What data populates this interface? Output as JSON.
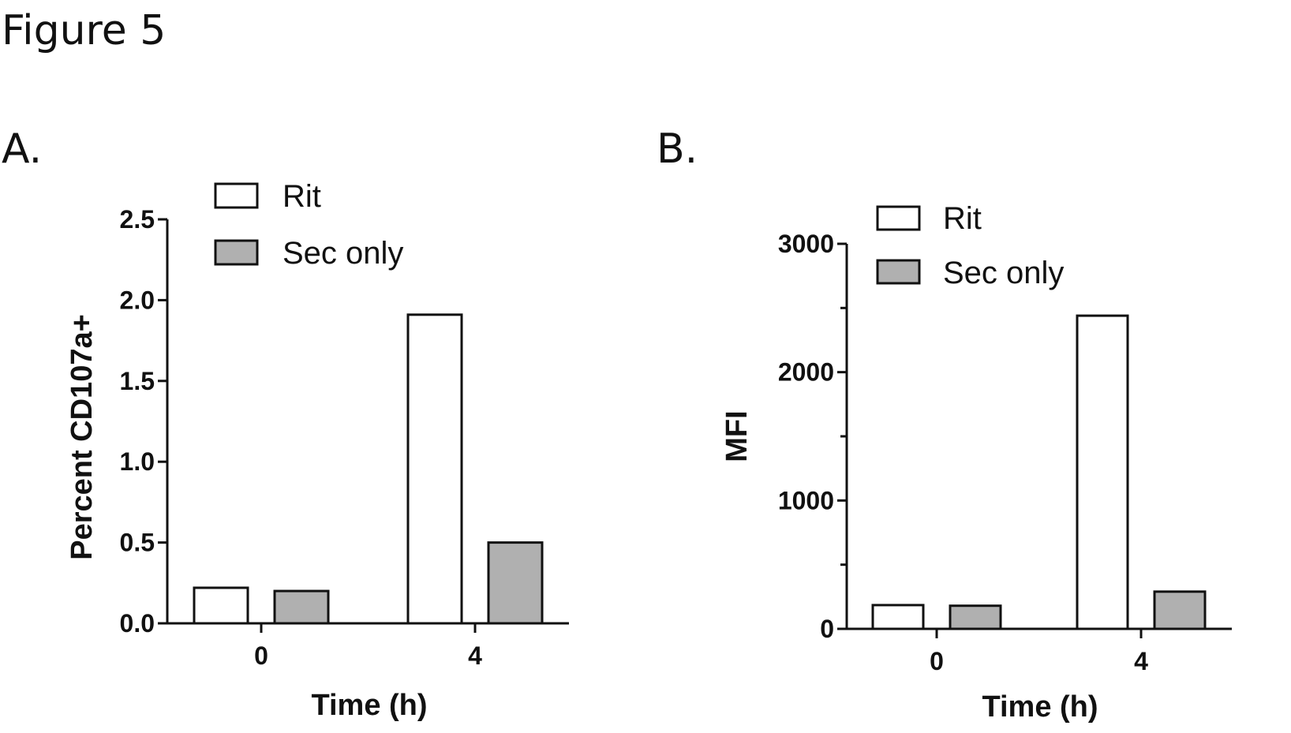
{
  "figure": {
    "title": "Figure 5"
  },
  "colors": {
    "rit": "#ffffff",
    "sec_only": "#b0b0b0",
    "stroke": "#111111"
  },
  "chart_data": [
    {
      "type": "bar",
      "panel_label": "A.",
      "title": "",
      "xlabel": "Time (h)",
      "ylabel": "Percent CD107a+",
      "categories": [
        "0",
        "4"
      ],
      "ylim": [
        0,
        2.5
      ],
      "yticks": [
        0,
        0.5,
        1.0,
        1.5,
        2.0,
        2.5
      ],
      "ytick_labels": [
        "0.0",
        "0.5",
        "1.0",
        "1.5",
        "2.0",
        "2.5"
      ],
      "minor_ticks": [],
      "legend_position": "top-left",
      "series": [
        {
          "name": "Rit",
          "values": [
            0.22,
            1.91
          ]
        },
        {
          "name": "Sec only",
          "values": [
            0.2,
            0.5
          ]
        }
      ]
    },
    {
      "type": "bar",
      "panel_label": "B.",
      "title": "",
      "xlabel": "Time (h)",
      "ylabel": "MFI",
      "categories": [
        "0",
        "4"
      ],
      "ylim": [
        0,
        3000
      ],
      "yticks": [
        0,
        1000,
        2000,
        3000
      ],
      "ytick_labels": [
        "0",
        "1000",
        "2000",
        "3000"
      ],
      "minor_ticks": [
        500,
        1500,
        2500
      ],
      "legend_position": "top-left",
      "series": [
        {
          "name": "Rit",
          "values": [
            185,
            2440
          ]
        },
        {
          "name": "Sec only",
          "values": [
            180,
            290
          ]
        }
      ]
    }
  ]
}
